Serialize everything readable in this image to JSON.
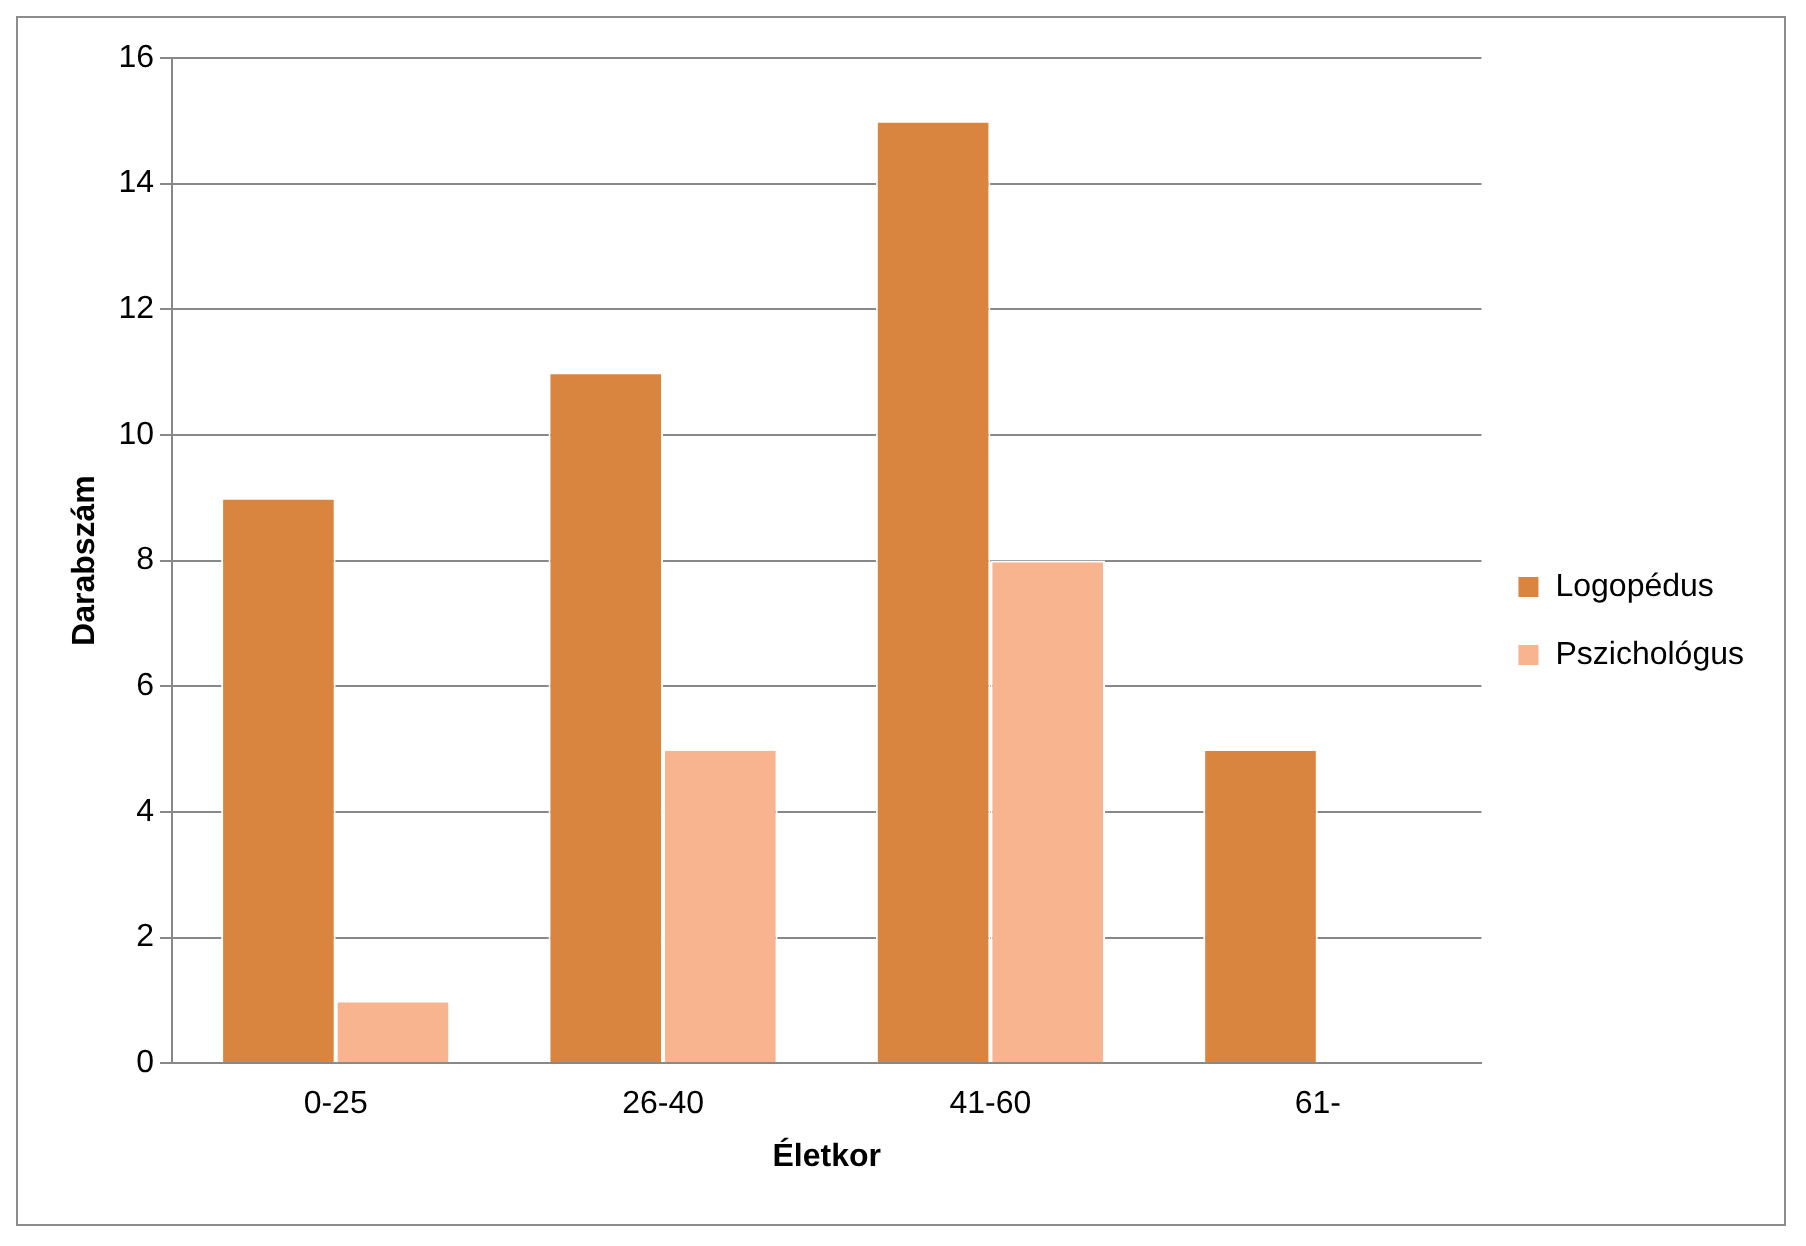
{
  "chart_data": {
    "type": "bar",
    "xlabel": "Életkor",
    "ylabel": "Darabszám",
    "categories": [
      "0-25",
      "26-40",
      "41-60",
      "61-"
    ],
    "series": [
      {
        "name": "Logopédus",
        "color": "#d9843f",
        "values": [
          9,
          11,
          15,
          5
        ]
      },
      {
        "name": "Pszichológus",
        "color": "#f8b48e",
        "values": [
          1,
          5,
          8,
          0
        ]
      }
    ],
    "ylim": [
      0,
      16
    ],
    "yticks": [
      0,
      2,
      4,
      6,
      8,
      10,
      12,
      14,
      16
    ],
    "grid": "y",
    "legend": "right"
  }
}
